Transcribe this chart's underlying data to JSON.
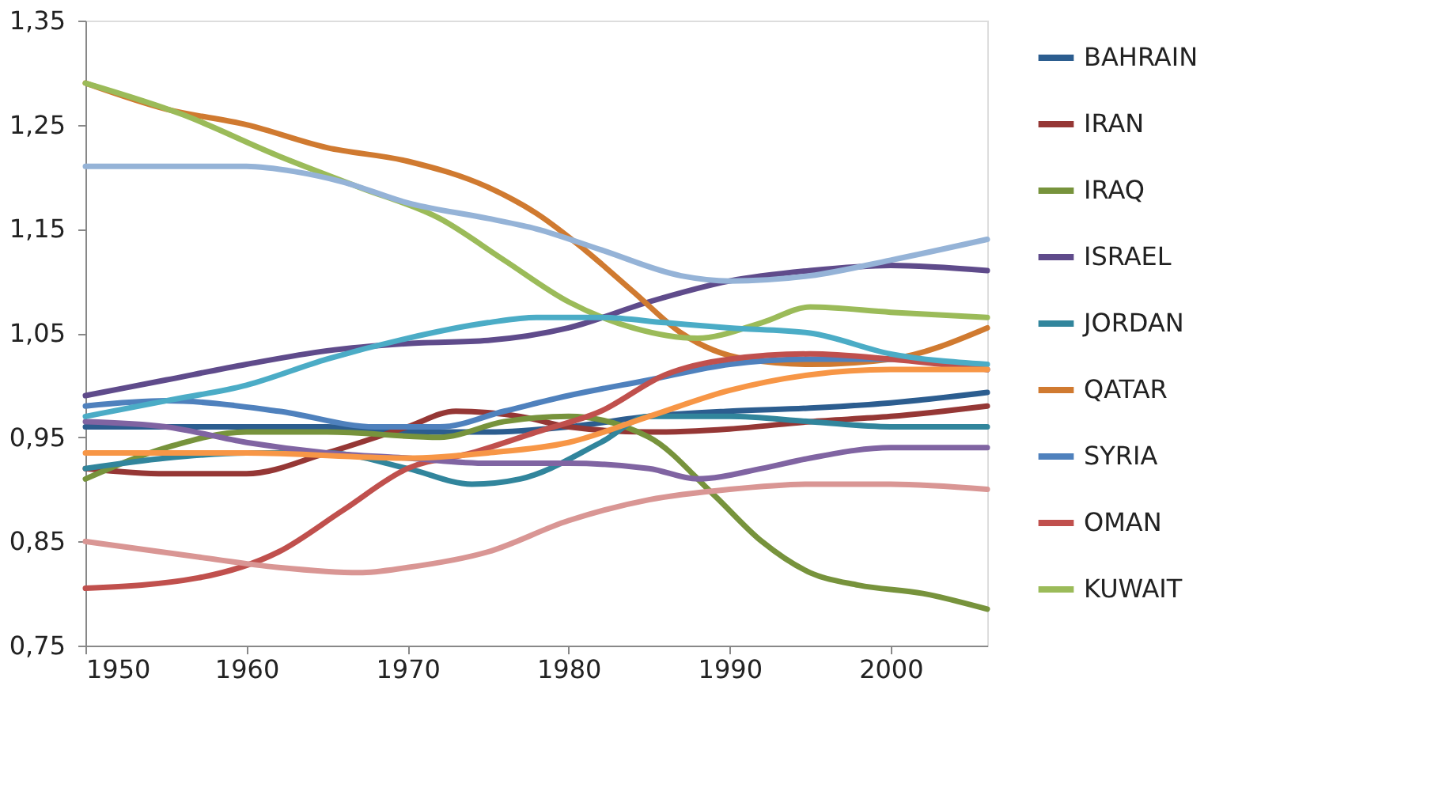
{
  "chart_data": {
    "type": "line",
    "xlim": [
      1950,
      2006
    ],
    "xticks": [
      1950,
      1960,
      1970,
      1980,
      1990,
      2000
    ],
    "ylim": [
      0.75,
      1.35
    ],
    "yticks": [
      {
        "value": 0.75,
        "label": "0,75"
      },
      {
        "value": 0.85,
        "label": "0,85"
      },
      {
        "value": 0.95,
        "label": "0,95"
      },
      {
        "value": 1.05,
        "label": "1,05"
      },
      {
        "value": 1.15,
        "label": "1,15"
      },
      {
        "value": 1.25,
        "label": "1,25"
      },
      {
        "value": 1.35,
        "label": "1,35"
      }
    ],
    "grid": false,
    "legend": "right",
    "marker": "none",
    "line_style": "solid",
    "series": [
      {
        "name": "BAHRAIN",
        "color": "#2c5d8f",
        "x": [
          1950,
          1955,
          1960,
          1965,
          1970,
          1975,
          1980,
          1985,
          1990,
          1995,
          2000,
          2006
        ],
        "values": [
          0.96,
          0.96,
          0.96,
          0.96,
          0.955,
          0.955,
          0.96,
          0.97,
          0.975,
          0.978,
          0.983,
          0.993
        ]
      },
      {
        "name": "IRAN",
        "color": "#953735",
        "x": [
          1950,
          1955,
          1960,
          1965,
          1970,
          1973,
          1977,
          1980,
          1985,
          1990,
          1995,
          2000,
          2006
        ],
        "values": [
          0.92,
          0.915,
          0.915,
          0.935,
          0.96,
          0.975,
          0.97,
          0.96,
          0.955,
          0.958,
          0.965,
          0.97,
          0.98
        ]
      },
      {
        "name": "IRAQ",
        "color": "#77933c",
        "x": [
          1950,
          1955,
          1960,
          1965,
          1972,
          1976,
          1980,
          1985,
          1989,
          1992,
          1995,
          1998,
          2002,
          2006
        ],
        "values": [
          0.91,
          0.94,
          0.955,
          0.955,
          0.95,
          0.965,
          0.97,
          0.95,
          0.895,
          0.85,
          0.82,
          0.808,
          0.8,
          0.785
        ]
      },
      {
        "name": "ISRAEL",
        "color": "#5f4b8b",
        "x": [
          1950,
          1955,
          1960,
          1965,
          1970,
          1975,
          1980,
          1985,
          1990,
          1995,
          2000,
          2006
        ],
        "values": [
          0.99,
          1.005,
          1.02,
          1.033,
          1.04,
          1.043,
          1.055,
          1.08,
          1.1,
          1.11,
          1.115,
          1.11
        ]
      },
      {
        "name": "JORDAN",
        "color": "#31859c",
        "x": [
          1950,
          1955,
          1960,
          1965,
          1970,
          1974,
          1977,
          1982,
          1985,
          1990,
          1995,
          2000,
          2006
        ],
        "values": [
          0.92,
          0.93,
          0.935,
          0.935,
          0.92,
          0.905,
          0.91,
          0.945,
          0.97,
          0.97,
          0.965,
          0.96,
          0.96
        ]
      },
      {
        "name": "QATAR",
        "color": "#d07a30",
        "x": [
          1950,
          1955,
          1960,
          1965,
          1970,
          1975,
          1978,
          1981,
          1984,
          1987,
          1991,
          1995,
          2000,
          2006
        ],
        "values": [
          1.29,
          1.265,
          1.25,
          1.228,
          1.215,
          1.19,
          1.165,
          1.13,
          1.09,
          1.05,
          1.025,
          1.02,
          1.025,
          1.055
        ]
      },
      {
        "name": "SYRIA",
        "color": "#4f81bd",
        "x": [
          1950,
          1955,
          1962,
          1968,
          1972,
          1976,
          1980,
          1985,
          1990,
          1995,
          2000,
          2006
        ],
        "values": [
          0.98,
          0.985,
          0.975,
          0.96,
          0.96,
          0.975,
          0.99,
          1.005,
          1.02,
          1.025,
          1.025,
          1.015
        ]
      },
      {
        "name": "OMAN",
        "color": "#c0504d",
        "x": [
          1950,
          1957,
          1962,
          1966,
          1970,
          1974,
          1978,
          1982,
          1986,
          1990,
          1995,
          2000,
          2006
        ],
        "values": [
          0.805,
          0.815,
          0.84,
          0.88,
          0.92,
          0.935,
          0.955,
          0.975,
          1.01,
          1.025,
          1.03,
          1.025,
          1.015
        ]
      },
      {
        "name": "KUWAIT",
        "color": "#9bbb59",
        "x": [
          1950,
          1956,
          1962,
          1967,
          1972,
          1976,
          1980,
          1984,
          1988,
          1992,
          1995,
          2000,
          2006
        ],
        "values": [
          1.29,
          1.26,
          1.22,
          1.19,
          1.16,
          1.12,
          1.08,
          1.055,
          1.045,
          1.06,
          1.075,
          1.07,
          1.065
        ]
      },
      {
        "color": "#8064a2",
        "x": [
          1950,
          1955,
          1960,
          1965,
          1970,
          1975,
          1980,
          1985,
          1988,
          1992,
          1995,
          2000,
          2006
        ],
        "values": [
          0.965,
          0.96,
          0.945,
          0.935,
          0.93,
          0.925,
          0.925,
          0.92,
          0.91,
          0.92,
          0.93,
          0.94,
          0.94
        ]
      },
      {
        "color": "#4bacc6",
        "x": [
          1950,
          1955,
          1960,
          1965,
          1970,
          1975,
          1978,
          1982,
          1986,
          1990,
          1995,
          2000,
          2006
        ],
        "values": [
          0.97,
          0.985,
          1.0,
          1.025,
          1.045,
          1.06,
          1.065,
          1.065,
          1.06,
          1.055,
          1.05,
          1.03,
          1.02
        ]
      },
      {
        "color": "#f79646",
        "x": [
          1950,
          1960,
          1970,
          1975,
          1980,
          1985,
          1990,
          1995,
          2000,
          2006
        ],
        "values": [
          0.935,
          0.935,
          0.93,
          0.935,
          0.945,
          0.97,
          0.995,
          1.01,
          1.015,
          1.015
        ]
      },
      {
        "color": "#95b3d7",
        "x": [
          1950,
          1960,
          1963,
          1966,
          1970,
          1975,
          1978,
          1982,
          1987,
          1990,
          1995,
          2000,
          2006
        ],
        "values": [
          1.21,
          1.21,
          1.205,
          1.195,
          1.175,
          1.16,
          1.15,
          1.13,
          1.105,
          1.1,
          1.105,
          1.12,
          1.14
        ]
      },
      {
        "color": "#d99694",
        "x": [
          1950,
          1957,
          1962,
          1967,
          1970,
          1975,
          1980,
          1985,
          1990,
          1995,
          2000,
          2006
        ],
        "values": [
          0.85,
          0.835,
          0.825,
          0.82,
          0.825,
          0.84,
          0.87,
          0.89,
          0.9,
          0.905,
          0.905,
          0.9
        ]
      }
    ]
  }
}
